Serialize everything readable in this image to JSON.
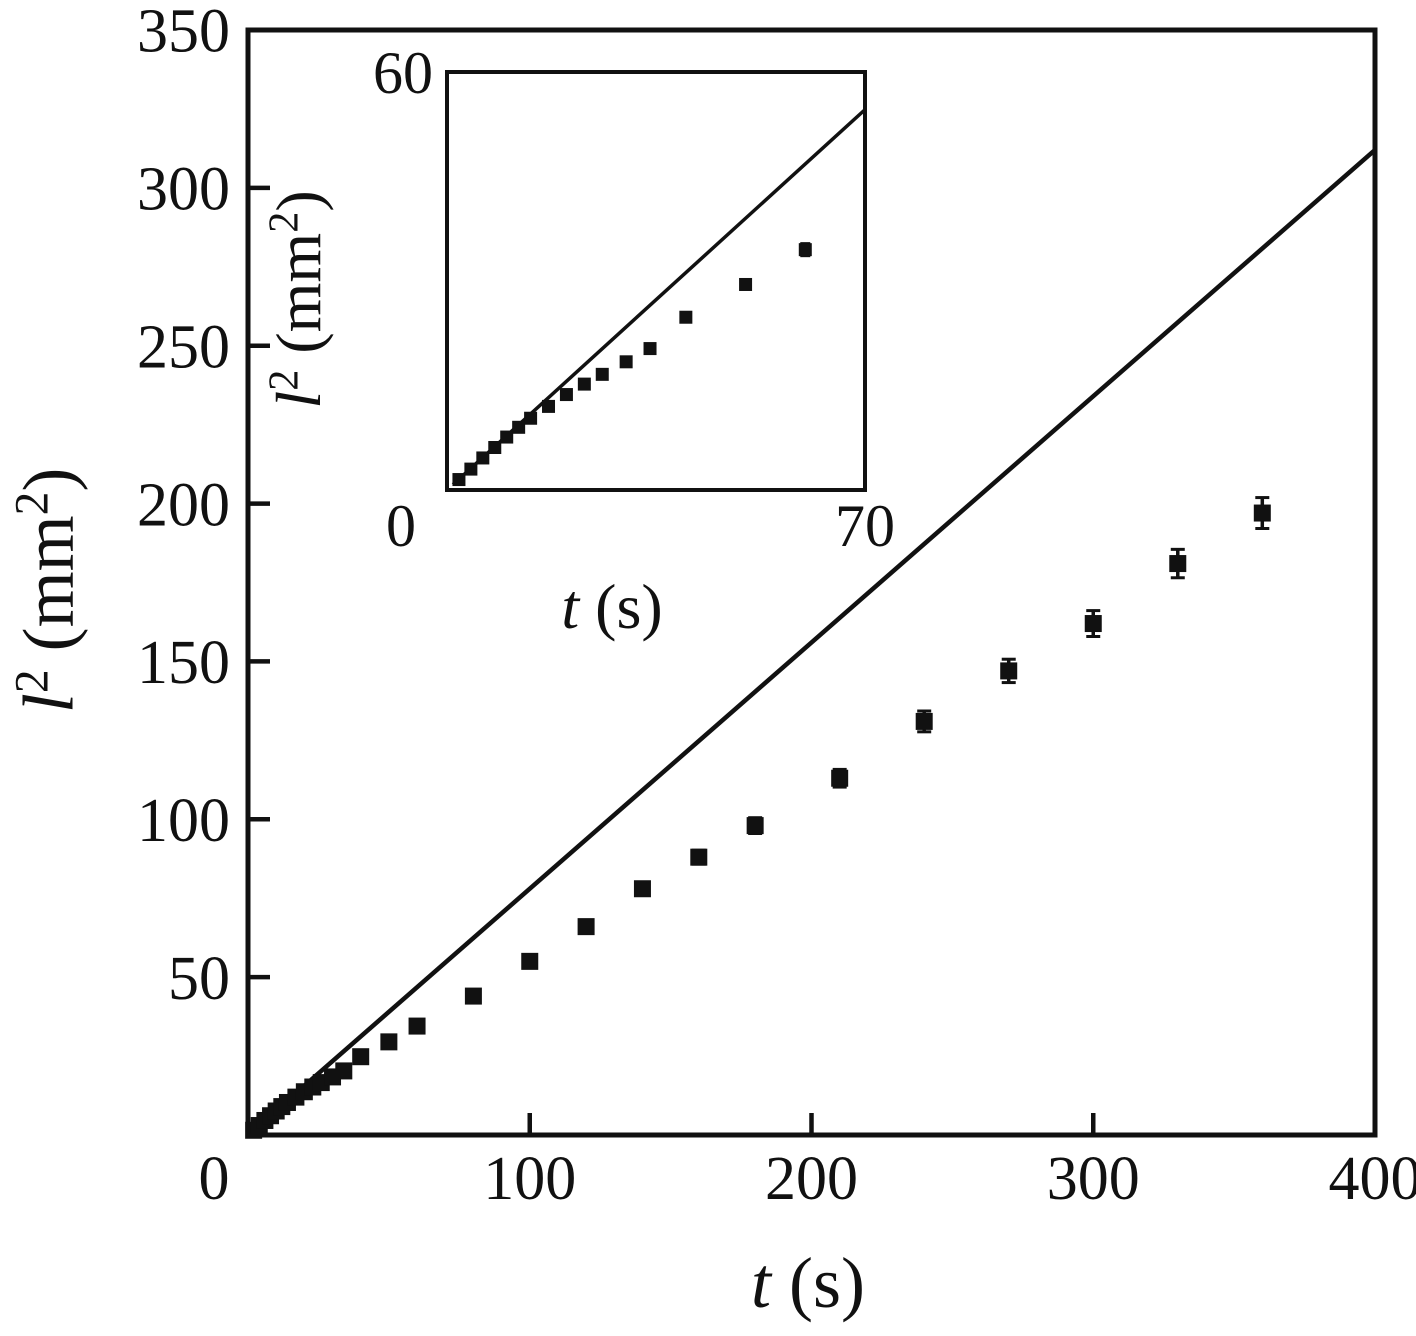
{
  "labels": {
    "y": {
      "var": "l",
      "sup": "2",
      "unit_pre": " (mm",
      "unit_sup": "2",
      "unit_post": ")"
    },
    "x": {
      "var": "t",
      "unit": " (s)"
    }
  },
  "chart_data": [
    {
      "id": "main",
      "type": "scatter",
      "title": "",
      "xlabel": "t (s)",
      "ylabel": "l² (mm²)",
      "xlim": [
        0,
        400
      ],
      "ylim": [
        0,
        350
      ],
      "xticks": [
        0,
        100,
        200,
        300,
        400
      ],
      "yticks": [
        50,
        100,
        150,
        200,
        250,
        300,
        350
      ],
      "grid": false,
      "legend": "none",
      "color": "#111111",
      "series": [
        {
          "name": "linear fit",
          "type": "line",
          "x": [
            2,
            400
          ],
          "y": [
            1.56,
            312
          ]
        },
        {
          "name": "experimental data",
          "type": "scatter",
          "marker": "filled-square",
          "x": [
            2,
            4,
            6,
            8,
            10,
            12,
            14,
            17,
            20,
            23,
            26,
            30,
            34,
            40,
            50,
            60,
            80,
            100,
            120,
            140,
            160,
            180,
            210,
            240,
            270,
            300,
            330,
            360
          ],
          "y": [
            1.5,
            3,
            4.6,
            6.1,
            7.6,
            9,
            10.3,
            12,
            13.7,
            15.2,
            16.6,
            18.4,
            20.3,
            24.8,
            29.5,
            34.5,
            44,
            55,
            66,
            78,
            88,
            98,
            113,
            131,
            147,
            162,
            181,
            197
          ],
          "yerr": [
            0.5,
            0.5,
            0.5,
            0.5,
            0.5,
            0.5,
            0.5,
            0.5,
            0.5,
            0.5,
            0.5,
            0.5,
            0.5,
            0.6,
            0.7,
            0.9,
            1.1,
            1.4,
            1.7,
            2,
            2.2,
            2.5,
            2.8,
            3.3,
            3.7,
            4.1,
            4.5,
            4.9
          ]
        }
      ]
    },
    {
      "id": "inset",
      "type": "scatter",
      "title": "",
      "xlabel": "t (s)",
      "ylabel": "l² (mm²)",
      "xlim": [
        0,
        70
      ],
      "ylim": [
        0,
        60
      ],
      "xticks": [
        0,
        70
      ],
      "yticks": [
        60
      ],
      "grid": false,
      "legend": "none",
      "color": "#111111",
      "series": [
        {
          "name": "linear fit",
          "type": "line",
          "x": [
            1,
            70
          ],
          "y": [
            0.78,
            54.6
          ]
        },
        {
          "name": "experimental data",
          "type": "scatter",
          "marker": "filled-square",
          "x": [
            2,
            4,
            6,
            8,
            10,
            12,
            14,
            17,
            20,
            23,
            26,
            30,
            34,
            40,
            50,
            60
          ],
          "y": [
            1.5,
            3,
            4.6,
            6.1,
            7.6,
            9,
            10.3,
            12,
            13.7,
            15.2,
            16.6,
            18.4,
            20.3,
            24.8,
            29.5,
            34.5
          ],
          "yerr": [
            0.5,
            0.5,
            0.5,
            0.5,
            0.5,
            0.5,
            0.5,
            0.5,
            0.5,
            0.5,
            0.5,
            0.5,
            0.5,
            0.6,
            0.7,
            0.9
          ]
        }
      ]
    }
  ]
}
